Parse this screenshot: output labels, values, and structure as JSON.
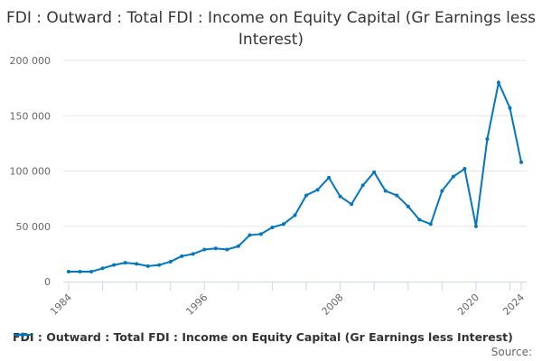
{
  "chart_data": {
    "type": "line",
    "title": "FDI : Outward : Total FDI : Income on Equity Capital (Gr Earnings less Interest)",
    "xlabel": "",
    "ylabel": "",
    "ylim": [
      0,
      200000
    ],
    "yticks": [
      0,
      50000,
      100000,
      150000,
      200000
    ],
    "ytick_labels": [
      "0",
      "50 000",
      "100 000",
      "150 000",
      "200 000"
    ],
    "xtick_labels": [
      "1984",
      "1996",
      "2008",
      "2020",
      "2024"
    ],
    "grid": true,
    "legend_position": "bottom-left",
    "color": "#0077c0",
    "series": [
      {
        "name": "FDI : Outward : Total FDI : Income on Equity Capital (Gr Earnings less Interest)",
        "x": [
          1984,
          1985,
          1986,
          1987,
          1988,
          1989,
          1990,
          1991,
          1992,
          1993,
          1994,
          1995,
          1996,
          1997,
          1998,
          1999,
          2000,
          2001,
          2002,
          2003,
          2004,
          2005,
          2006,
          2007,
          2008,
          2009,
          2010,
          2011,
          2012,
          2013,
          2014,
          2015,
          2016,
          2017,
          2018,
          2019,
          2020,
          2021,
          2022,
          2023,
          2024
        ],
        "values": [
          9000,
          9000,
          9000,
          12000,
          15000,
          17000,
          16000,
          14000,
          15000,
          18000,
          23000,
          25000,
          29000,
          30000,
          29000,
          32000,
          42000,
          43000,
          49000,
          52000,
          60000,
          78000,
          83000,
          94000,
          77000,
          70000,
          87000,
          99000,
          82000,
          78000,
          68000,
          56000,
          52000,
          82000,
          95000,
          102000,
          50000,
          129000,
          180000,
          157000,
          108000
        ]
      }
    ]
  },
  "source": "Source:"
}
